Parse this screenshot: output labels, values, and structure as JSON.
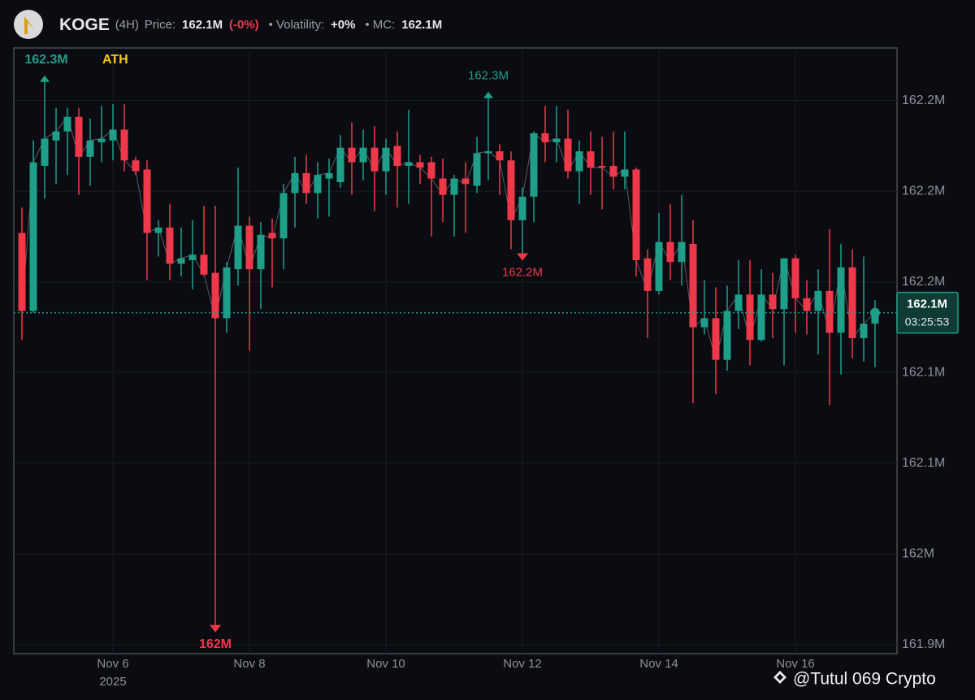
{
  "header": {
    "symbol": "KOGE",
    "interval": "(4H)",
    "price_label": "Price:",
    "price": "162.1M",
    "change": "(-0%)",
    "volatility_label": "• Volatility:",
    "volatility": "+0%",
    "mc_label": "• MC:",
    "mc": "162.1M"
  },
  "watermark": "@Tutul 069 Crypto",
  "chart_data": {
    "type": "candlestick",
    "categories": [
      null,
      null,
      null,
      null,
      null,
      null,
      null,
      null,
      "Nov 6",
      null,
      null,
      null,
      null,
      null,
      null,
      null,
      null,
      null,
      null,
      null,
      "Nov 8",
      null,
      null,
      null,
      null,
      null,
      null,
      null,
      null,
      null,
      null,
      null,
      "Nov 10",
      null,
      null,
      null,
      null,
      null,
      null,
      null,
      null,
      null,
      null,
      null,
      "Nov 12",
      null,
      null,
      null,
      null,
      null,
      null,
      null,
      null,
      null,
      null,
      null,
      "Nov 14",
      null,
      null,
      null,
      null,
      null,
      null,
      null,
      null,
      null,
      null,
      null,
      "Nov 16",
      null,
      null,
      null,
      null,
      null,
      null,
      null
    ],
    "year_label": "2025",
    "open": [
      162.177,
      162.134,
      162.214,
      162.228,
      162.233,
      162.241,
      162.219,
      162.227,
      162.228,
      162.234,
      162.217,
      162.212,
      162.177,
      162.18,
      162.16,
      162.162,
      162.165,
      162.155,
      162.13,
      162.157,
      162.181,
      162.157,
      162.177,
      162.174,
      162.199,
      162.21,
      162.199,
      162.207,
      162.205,
      162.224,
      162.216,
      162.224,
      162.211,
      162.225,
      162.214,
      162.216,
      162.216,
      162.207,
      162.198,
      162.207,
      162.203,
      162.221,
      162.222,
      162.217,
      162.184,
      162.197,
      162.232,
      162.227,
      162.229,
      162.211,
      162.222,
      162.214,
      162.214,
      162.208,
      162.212,
      162.163,
      162.145,
      162.172,
      162.161,
      162.171,
      162.125,
      162.13,
      162.107,
      162.134,
      162.143,
      162.118,
      162.143,
      162.135,
      162.163,
      162.141,
      162.134,
      162.145,
      162.122,
      162.158,
      162.119,
      162.127
    ],
    "high": [
      162.191,
      162.228,
      162.263,
      162.246,
      162.246,
      162.246,
      162.24,
      162.247,
      162.248,
      162.248,
      162.219,
      162.217,
      162.184,
      162.193,
      162.18,
      162.184,
      162.192,
      162.192,
      162.161,
      162.213,
      162.186,
      162.183,
      162.185,
      162.204,
      162.219,
      162.22,
      162.216,
      162.218,
      162.231,
      162.238,
      162.234,
      162.236,
      162.229,
      162.233,
      162.245,
      162.22,
      162.219,
      162.218,
      162.209,
      162.216,
      162.23,
      162.254,
      162.226,
      162.222,
      162.202,
      162.233,
      162.247,
      162.247,
      162.245,
      162.228,
      162.233,
      162.23,
      162.233,
      162.233,
      162.213,
      162.168,
      162.188,
      162.193,
      162.198,
      162.184,
      162.151,
      162.147,
      162.148,
      162.162,
      162.162,
      162.157,
      162.155,
      162.163,
      162.165,
      162.151,
      162.157,
      162.179,
      162.171,
      162.168,
      162.164,
      162.14
    ],
    "low": [
      162.118,
      162.133,
      162.196,
      162.204,
      162.209,
      162.198,
      162.203,
      162.216,
      162.217,
      162.211,
      162.209,
      162.151,
      162.164,
      162.151,
      162.153,
      162.146,
      162.153,
      161.959,
      162.122,
      162.148,
      162.112,
      162.135,
      162.147,
      162.157,
      162.18,
      162.193,
      162.185,
      162.186,
      162.202,
      162.198,
      162.206,
      162.189,
      162.198,
      162.191,
      162.193,
      162.204,
      162.175,
      162.183,
      162.175,
      162.177,
      162.199,
      162.206,
      162.198,
      162.168,
      162.164,
      162.183,
      162.216,
      162.216,
      162.207,
      162.193,
      162.198,
      162.19,
      162.201,
      162.201,
      162.153,
      162.119,
      162.143,
      162.151,
      162.148,
      162.083,
      162.121,
      162.088,
      162.101,
      162.124,
      162.104,
      162.117,
      162.119,
      162.104,
      162.122,
      162.121,
      162.11,
      162.082,
      162.099,
      162.108,
      162.106,
      162.103
    ],
    "close": [
      162.134,
      162.216,
      162.229,
      162.233,
      162.241,
      162.219,
      162.228,
      162.229,
      162.234,
      162.217,
      162.211,
      162.177,
      162.18,
      162.16,
      162.163,
      162.165,
      162.154,
      162.13,
      162.158,
      162.181,
      162.157,
      162.176,
      162.174,
      162.199,
      162.21,
      162.199,
      162.209,
      162.21,
      162.224,
      162.216,
      162.224,
      162.211,
      162.224,
      162.214,
      162.216,
      162.213,
      162.207,
      162.198,
      162.207,
      162.204,
      162.221,
      162.222,
      162.217,
      162.184,
      162.197,
      162.232,
      162.227,
      162.229,
      162.211,
      162.222,
      162.213,
      162.213,
      162.208,
      162.212,
      162.162,
      162.145,
      162.172,
      162.161,
      162.172,
      162.125,
      162.13,
      162.107,
      162.134,
      162.143,
      162.118,
      162.143,
      162.135,
      162.163,
      162.141,
      162.134,
      162.145,
      162.122,
      162.158,
      162.119,
      162.127,
      162.133
    ],
    "high_labels": [
      null,
      null,
      "162.3M",
      null,
      null,
      null,
      null,
      null,
      null,
      null,
      null,
      null,
      null,
      null,
      null,
      null,
      null,
      null,
      null,
      null,
      null,
      null,
      null,
      null,
      null,
      null,
      null,
      null,
      null,
      null,
      null,
      null,
      null,
      null,
      null,
      null,
      null,
      null,
      null,
      null,
      null,
      "162.3M",
      null,
      null,
      null,
      null,
      null,
      null,
      null,
      null,
      null,
      null,
      null,
      null,
      null,
      null,
      null,
      null,
      null,
      null,
      null,
      null,
      null,
      null,
      null,
      null,
      null,
      null,
      null,
      null,
      null,
      null,
      null,
      null,
      null,
      null
    ],
    "low_labels": [
      null,
      null,
      null,
      null,
      null,
      null,
      null,
      null,
      null,
      null,
      null,
      null,
      null,
      null,
      null,
      null,
      null,
      "162M",
      null,
      null,
      null,
      null,
      null,
      null,
      null,
      null,
      null,
      null,
      null,
      null,
      null,
      null,
      null,
      null,
      null,
      null,
      null,
      null,
      null,
      null,
      null,
      null,
      null,
      null,
      "162.2M",
      null,
      null,
      null,
      null,
      null,
      null,
      null,
      null,
      null,
      null,
      null,
      null,
      null,
      null,
      null,
      null,
      null,
      null,
      null,
      null,
      null,
      null,
      null,
      null,
      null,
      null,
      null,
      null,
      null,
      null,
      null
    ],
    "ath_label": "ATH",
    "last_price": {
      "value": 162.133,
      "label": "162.1M",
      "countdown": "03:25:53"
    },
    "up_color": "#1f9e89",
    "down_color": "#f0384b",
    "ylim": [
      161.945,
      162.279
    ],
    "yticks": [
      {
        "value": 162.25,
        "label": "162.2M"
      },
      {
        "value": 162.2,
        "label": "162.2M"
      },
      {
        "value": 162.15,
        "label": "162.2M"
      },
      {
        "value": 162.1,
        "label": "162.1M"
      },
      {
        "value": 162.05,
        "label": "162.1M"
      },
      {
        "value": 162.0,
        "label": "162M"
      },
      {
        "value": 161.95,
        "label": "161.9M"
      }
    ],
    "grid": true
  }
}
